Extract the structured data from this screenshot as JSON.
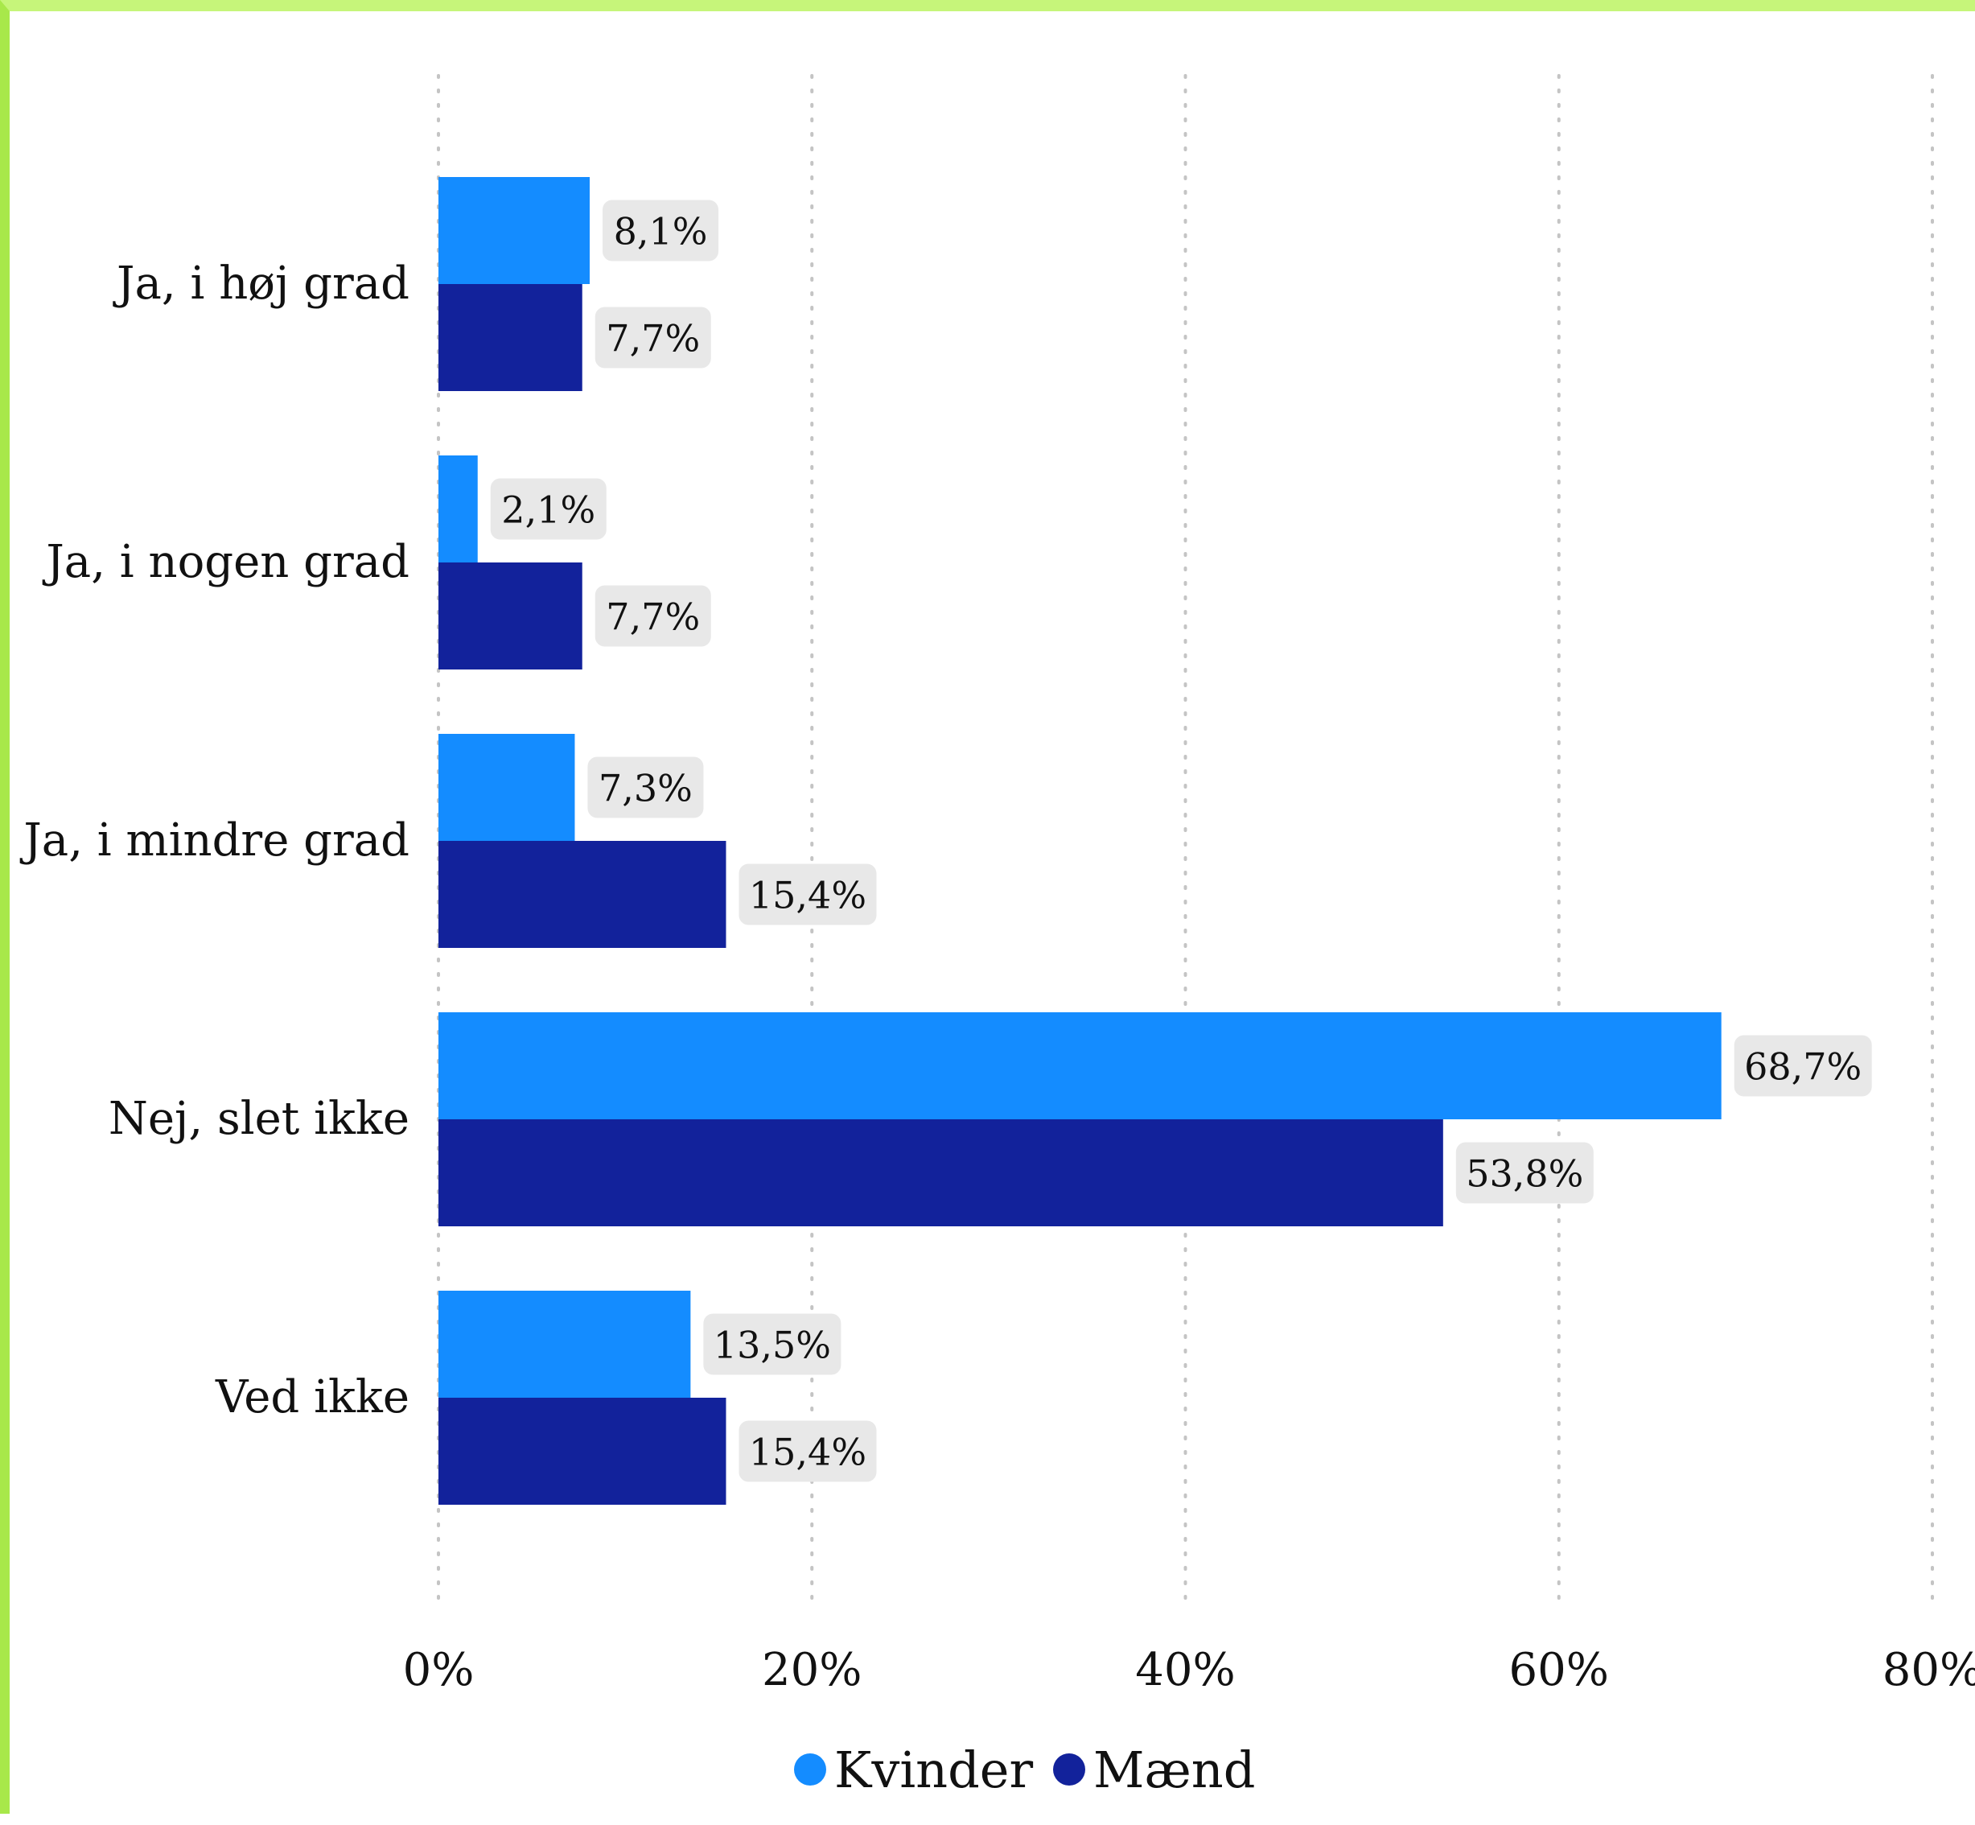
{
  "chart_data": {
    "type": "bar",
    "orientation": "horizontal",
    "categories": [
      "Ja, i høj grad",
      "Ja, i nogen grad",
      "Ja, i mindre grad",
      "Nej, slet ikke",
      "Ved ikke"
    ],
    "series": [
      {
        "name": "Kvinder",
        "color": "#148cff",
        "values": [
          8.1,
          2.1,
          7.3,
          68.7,
          13.5
        ],
        "labels": [
          "8,1%",
          "2,1%",
          "7,3%",
          "68,7%",
          "13,5%"
        ]
      },
      {
        "name": "Mænd",
        "color": "#12229b",
        "values": [
          7.7,
          7.7,
          15.4,
          53.8,
          15.4
        ],
        "labels": [
          "7,7%",
          "7,7%",
          "15,4%",
          "53,8%",
          "15,4%"
        ]
      }
    ],
    "xlim": [
      0,
      80
    ],
    "xticks": [
      0,
      20,
      40,
      60,
      80
    ],
    "xtick_labels": [
      "0%",
      "20%",
      "40%",
      "60%",
      "80%"
    ],
    "grid": "vertical dotted",
    "legend": "bottom-center",
    "value_label_bg": "#e8e8e8"
  }
}
